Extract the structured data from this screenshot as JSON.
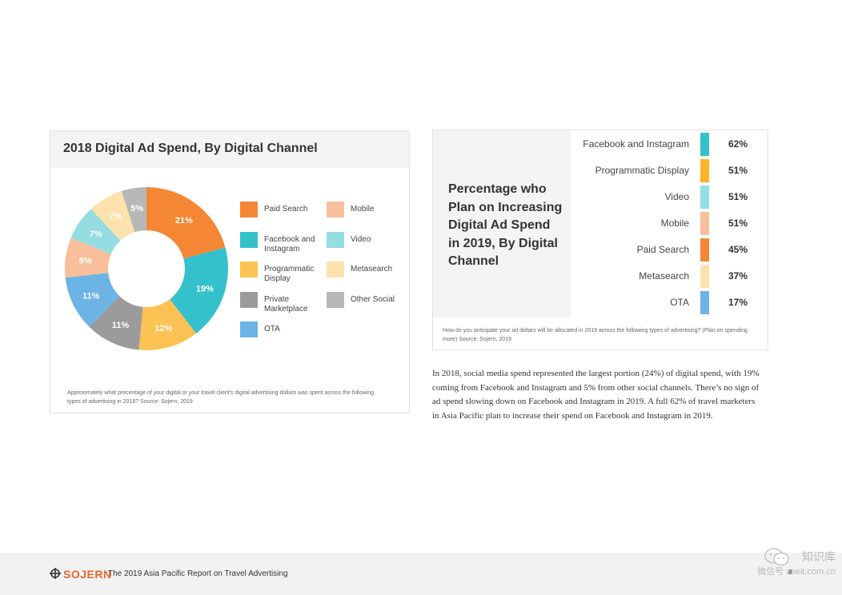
{
  "chart_data": [
    {
      "type": "pie",
      "title": "2018 Digital Ad Spend, By Digital Channel",
      "slices": [
        {
          "label": "Paid Search",
          "value": 21,
          "display": "21%",
          "color": "#f58634"
        },
        {
          "label": "Facebook and Instagram",
          "value": 19,
          "display": "19%",
          "color": "#34c1cc"
        },
        {
          "label": "Programmatic Display",
          "value": 12,
          "display": "12%",
          "color": "#fcc254"
        },
        {
          "label": "Private Marketplace",
          "value": 11,
          "display": "11%",
          "color": "#9b9b9b"
        },
        {
          "label": "OTA",
          "value": 11,
          "display": "11%",
          "color": "#6cb4e6"
        },
        {
          "label": "Mobile",
          "value": 8,
          "display": "8%",
          "color": "#f9bf9a"
        },
        {
          "label": "Video",
          "value": 7,
          "display": "7%",
          "color": "#94dde2"
        },
        {
          "label": "Metasearch",
          "value": 7,
          "display": "7%",
          "color": "#fde2ad"
        },
        {
          "label": "Other Social",
          "value": 5,
          "display": "5%",
          "color": "#b7b7b7"
        }
      ],
      "legend": [
        {
          "label": "Paid Search",
          "color": "#f58634"
        },
        {
          "label": "Mobile",
          "color": "#f9bf9a"
        },
        {
          "label": "Facebook and Instagram",
          "color": "#34c1cc"
        },
        {
          "label": "Video",
          "color": "#94dde2"
        },
        {
          "label": "Programmatic Display",
          "color": "#fcc254"
        },
        {
          "label": "Metasearch",
          "color": "#fde2ad"
        },
        {
          "label": "Private Marketplace",
          "color": "#9b9b9b"
        },
        {
          "label": "Other Social",
          "color": "#b7b7b7"
        },
        {
          "label": "OTA",
          "color": "#6cb4e6"
        }
      ],
      "source": "Approximately what precentage of your digital or your travel client's digital advertising dollars was spent across the following types of advertising in 2018? Source: Sojern, 2019"
    },
    {
      "type": "bar",
      "orientation": "horizontal",
      "title": "Percentage who Plan on Increasing Digital Ad Spend in 2019, By Digital Channel",
      "categories": [
        "Facebook and Instagram",
        "Programmatic Display",
        "Video",
        "Mobile",
        "Paid Search",
        "Metasearch",
        "OTA"
      ],
      "values": [
        62,
        51,
        51,
        51,
        45,
        37,
        17
      ],
      "labels": [
        "62%",
        "51%",
        "51%",
        "51%",
        "45%",
        "37%",
        "17%"
      ],
      "colors": [
        "#34c1cc",
        "#fcb42b",
        "#94dde2",
        "#f9bf9a",
        "#f58634",
        "#fde2ad",
        "#6cb4e6"
      ],
      "source": "How do you anticipate your ad dollars will be allocated in 2019 across the following types of advertising? (Plan on spending more) Source: Sojern, 2019"
    }
  ],
  "body_text": "In 2018, social media spend represented the largest portion (24%) of digital spend, with 19% coming from Facebook and Instagram and 5% from other social channels. There’s no sign of ad spend slowing down on Facebook and Instagram in 2019. A full 62% of travel marketers in Asia Pacific plan to increase their spend on Facebook and Instagram in 2019.",
  "footer": {
    "brand": "SOJERN",
    "report_title": "The 2019 Asia Pacific Report on Travel Advertising",
    "page_number": "8"
  },
  "watermark": {
    "line1": "知识库",
    "line2": "微信号 useit.com.cn"
  },
  "icons": {
    "brand_logo": "sojern-logo-icon",
    "watermark_logo": "wechat-icon"
  }
}
